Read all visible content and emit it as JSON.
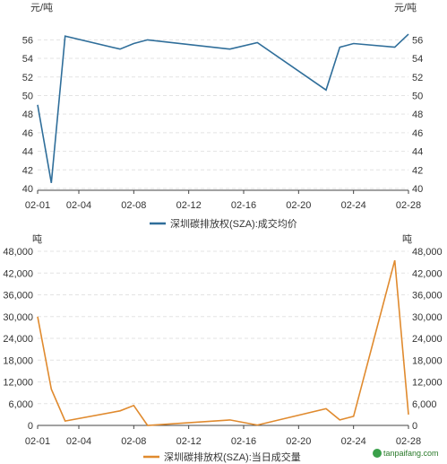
{
  "chart_data": [
    {
      "type": "line",
      "unit_left": "元/吨",
      "unit_right": "元/吨",
      "x_ticks": [
        "02-01",
        "02-04",
        "02-08",
        "02-12",
        "02-16",
        "02-20",
        "02-24",
        "02-28"
      ],
      "y_ticks": [
        "40",
        "42",
        "44",
        "46",
        "48",
        "50",
        "52",
        "54",
        "56"
      ],
      "ylim": [
        40,
        57
      ],
      "grid": true,
      "legend_position": "bottom",
      "color": "#2f6e9a",
      "series": [
        {
          "name": "深圳碳排放权(SZA):成交均价",
          "points": [
            [
              "02-01",
              49.0
            ],
            [
              "02-02",
              40.6
            ],
            [
              "02-03",
              56.4
            ],
            [
              "02-07",
              55.0
            ],
            [
              "02-08",
              55.6
            ],
            [
              "02-09",
              56.0
            ],
            [
              "02-15",
              55.0
            ],
            [
              "02-17",
              55.7
            ],
            [
              "02-22",
              50.6
            ],
            [
              "02-23",
              55.2
            ],
            [
              "02-24",
              55.6
            ],
            [
              "02-27",
              55.2
            ],
            [
              "02-28",
              56.6
            ]
          ]
        }
      ]
    },
    {
      "type": "line",
      "unit_left": "吨",
      "unit_right": "吨",
      "x_ticks": [
        "02-01",
        "02-04",
        "02-08",
        "02-12",
        "02-16",
        "02-20",
        "02-24",
        "02-28"
      ],
      "y_ticks": [
        "0",
        "6,000",
        "12,000",
        "18,000",
        "24,000",
        "30,000",
        "36,000",
        "42,000",
        "48,000"
      ],
      "ylim": [
        0,
        48000
      ],
      "grid": true,
      "legend_position": "bottom",
      "color": "#e08a2e",
      "series": [
        {
          "name": "深圳碳排放权(SZA):当日成交量",
          "points": [
            [
              "02-01",
              30000
            ],
            [
              "02-02",
              10000
            ],
            [
              "02-03",
              1200
            ],
            [
              "02-07",
              4000
            ],
            [
              "02-08",
              5500
            ],
            [
              "02-09",
              0
            ],
            [
              "02-15",
              1500
            ],
            [
              "02-17",
              100
            ],
            [
              "02-22",
              4600
            ],
            [
              "02-23",
              1500
            ],
            [
              "02-24",
              2500
            ],
            [
              "02-27",
              45500
            ],
            [
              "02-28",
              3000
            ]
          ]
        }
      ]
    }
  ],
  "watermark": "tanpaifang.com"
}
